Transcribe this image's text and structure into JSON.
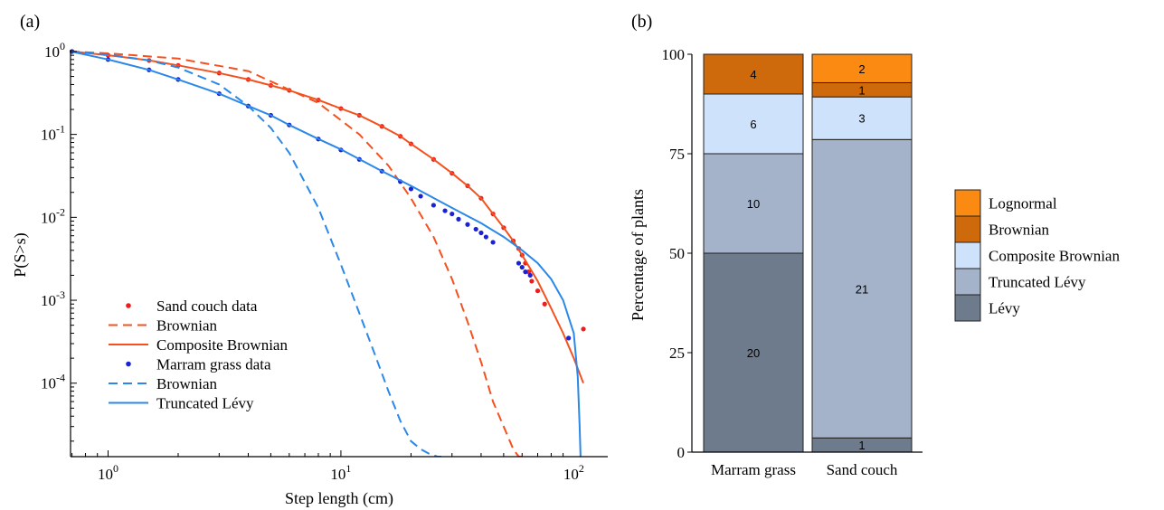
{
  "chart_data": [
    {
      "panel_label": "(a)",
      "type": "line",
      "xscale": "log",
      "yscale": "log",
      "xlabel": "Step length (cm)",
      "ylabel": "P(S>s)",
      "xlim": [
        0.69,
        140
      ],
      "ylim": [
        1.3e-05,
        1.05
      ],
      "xticks": [
        1,
        10,
        100
      ],
      "xtick_labels": [
        {
          "base": "10",
          "exp": "0"
        },
        {
          "base": "10",
          "exp": "1"
        },
        {
          "base": "10",
          "exp": "2"
        }
      ],
      "yticks": [
        0.0001,
        0.001,
        0.01,
        0.1,
        1
      ],
      "ytick_labels": [
        {
          "base": "10",
          "exp": "-4"
        },
        {
          "base": "10",
          "exp": "-3"
        },
        {
          "base": "10",
          "exp": "-2"
        },
        {
          "base": "10",
          "exp": "-1"
        },
        {
          "base": "10",
          "exp": "0"
        }
      ],
      "legend_placement": "bottom-left",
      "series": [
        {
          "name": "Sand couch data",
          "style": "dots",
          "color": "#ee1c1c",
          "x": [
            0.7,
            1,
            1.5,
            2,
            3,
            4,
            5,
            6,
            8,
            10,
            12,
            15,
            18,
            20,
            25,
            30,
            35,
            40,
            45,
            50,
            55,
            58,
            60,
            62,
            64,
            66,
            70,
            75,
            110
          ],
          "y": [
            1,
            0.9,
            0.78,
            0.68,
            0.55,
            0.46,
            0.39,
            0.34,
            0.26,
            0.205,
            0.17,
            0.125,
            0.095,
            0.077,
            0.05,
            0.034,
            0.024,
            0.017,
            0.011,
            0.0075,
            0.0052,
            0.0042,
            0.0035,
            0.0028,
            0.0022,
            0.0017,
            0.0013,
            0.0009,
            0.00045
          ]
        },
        {
          "name": "Brownian",
          "style": "dashed",
          "color": "#f4511e",
          "x": [
            0.69,
            1,
            2,
            4,
            8,
            12,
            16,
            20,
            25,
            30,
            35,
            40,
            45,
            50,
            55,
            58,
            60
          ],
          "y": [
            1,
            0.95,
            0.82,
            0.58,
            0.24,
            0.1,
            0.042,
            0.017,
            0.0058,
            0.0018,
            0.00055,
            0.00018,
            6e-05,
            3e-05,
            1.6e-05,
            1.3e-05,
            1.3e-05
          ]
        },
        {
          "name": "Composite Brownian",
          "style": "solid",
          "color": "#f4511e",
          "x": [
            0.7,
            1,
            1.5,
            2,
            3,
            4,
            5,
            6,
            8,
            10,
            12,
            15,
            18,
            20,
            25,
            30,
            35,
            40,
            45,
            50,
            55,
            60,
            70,
            80,
            90,
            100,
            110
          ],
          "y": [
            1,
            0.9,
            0.78,
            0.68,
            0.55,
            0.46,
            0.39,
            0.34,
            0.26,
            0.205,
            0.17,
            0.125,
            0.095,
            0.077,
            0.05,
            0.034,
            0.024,
            0.017,
            0.011,
            0.0075,
            0.0052,
            0.0035,
            0.0017,
            0.0008,
            0.0004,
            0.0002,
            0.0001
          ]
        },
        {
          "name": "Marram grass data",
          "style": "dots",
          "color": "#1a22d4",
          "x": [
            0.7,
            1,
            1.5,
            2,
            3,
            4,
            5,
            6,
            8,
            10,
            12,
            15,
            18,
            20,
            22,
            25,
            28,
            30,
            32,
            35,
            38,
            40,
            42,
            45,
            58,
            60,
            62,
            65,
            95
          ],
          "y": [
            1,
            0.8,
            0.6,
            0.46,
            0.31,
            0.22,
            0.17,
            0.13,
            0.088,
            0.065,
            0.05,
            0.036,
            0.027,
            0.022,
            0.018,
            0.014,
            0.012,
            0.011,
            0.0095,
            0.0082,
            0.0072,
            0.0065,
            0.0058,
            0.005,
            0.0028,
            0.0025,
            0.0022,
            0.002,
            0.00035
          ]
        },
        {
          "name": "Brownian",
          "style": "dashed",
          "color": "#2b88e8",
          "x": [
            0.69,
            1,
            1.5,
            2,
            3,
            4,
            5,
            6,
            8,
            10,
            12,
            14,
            16,
            18,
            20,
            22,
            24,
            26,
            27
          ],
          "y": [
            1,
            0.92,
            0.78,
            0.64,
            0.4,
            0.22,
            0.12,
            0.06,
            0.013,
            0.0027,
            0.0007,
            0.00022,
            8e-05,
            3.5e-05,
            2e-05,
            1.6e-05,
            1.4e-05,
            1.3e-05,
            1.3e-05
          ]
        },
        {
          "name": "Truncated Lévy",
          "style": "solid",
          "color": "#2b88e8",
          "x": [
            0.69,
            1,
            1.5,
            2,
            3,
            4,
            5,
            6,
            8,
            10,
            15,
            20,
            30,
            40,
            50,
            60,
            70,
            80,
            90,
            100,
            104,
            106,
            107
          ],
          "y": [
            1,
            0.8,
            0.6,
            0.46,
            0.31,
            0.22,
            0.17,
            0.13,
            0.088,
            0.066,
            0.036,
            0.024,
            0.013,
            0.0085,
            0.0058,
            0.004,
            0.0028,
            0.0018,
            0.001,
            0.0004,
            0.00012,
            3e-05,
            1.3e-05
          ]
        }
      ]
    },
    {
      "panel_label": "(b)",
      "type": "bar",
      "stacked": true,
      "ylabel": "Percentage of plants",
      "ylim": [
        0,
        100
      ],
      "yticks": [
        0,
        25,
        50,
        75,
        100
      ],
      "categories": [
        "Marram grass",
        "Sand couch"
      ],
      "legend_placement": "right",
      "series": [
        {
          "name": "Lévy",
          "color": "#6e7b8c",
          "values": [
            50,
            3.57
          ],
          "counts": [
            "20",
            "1"
          ]
        },
        {
          "name": "Truncated Lévy",
          "color": "#a4b3ca",
          "values": [
            25,
            75
          ],
          "counts": [
            "10",
            "21"
          ]
        },
        {
          "name": "Composite Brownian",
          "color": "#cfe2fb",
          "values": [
            15,
            10.71
          ],
          "counts": [
            "6",
            "3"
          ]
        },
        {
          "name": "Brownian",
          "color": "#cf6a0c",
          "values": [
            10,
            3.57
          ],
          "counts": [
            "4",
            "1"
          ]
        },
        {
          "name": "Lognormal",
          "color": "#fb8a12",
          "values": [
            0,
            7.14
          ],
          "counts": [
            "",
            "2"
          ]
        }
      ]
    }
  ]
}
